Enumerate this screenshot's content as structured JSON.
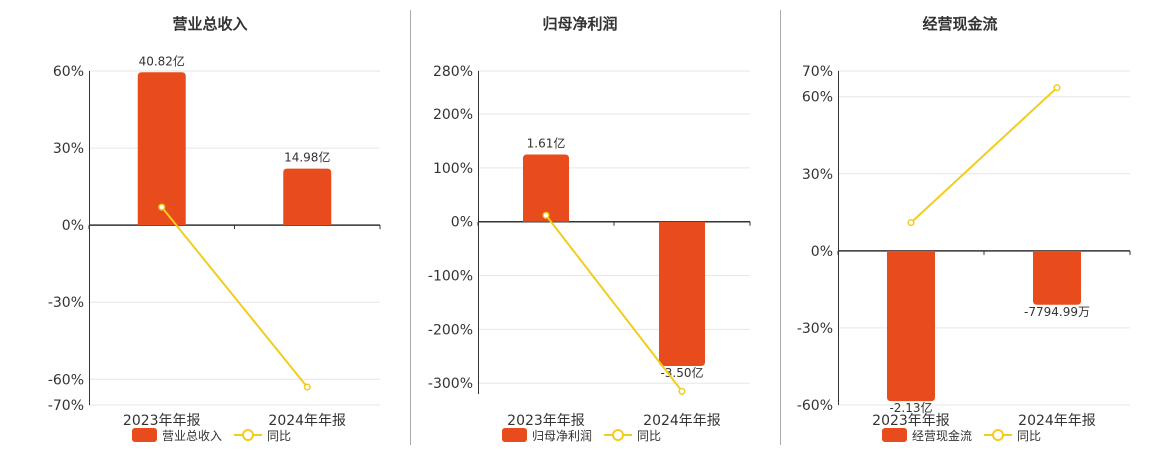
{
  "colors": {
    "bar": "#E84B1C",
    "line": "#F2CC1F",
    "grid": "#E6E6E6",
    "axis": "#333333",
    "divider": "#AAAAAA",
    "text": "#333333"
  },
  "chart_data": [
    {
      "type": "bar",
      "title": "营业总收入",
      "categories": [
        "2023年年报",
        "2024年年报"
      ],
      "ylim": [
        -70,
        60
      ],
      "yticks": [
        60,
        30,
        0,
        -30,
        -60,
        -70
      ],
      "ytick_labels": [
        "60%",
        "30%",
        "0%",
        "-30%",
        "-60%",
        "-70%"
      ],
      "series": [
        {
          "name": "营业总收入",
          "kind": "bar",
          "values": [
            59.5,
            22
          ],
          "labels": [
            "40.82亿",
            "14.98亿"
          ]
        },
        {
          "name": "同比",
          "kind": "line",
          "values": [
            7,
            -63
          ]
        }
      ],
      "legend": "bottom-center",
      "grid": true
    },
    {
      "type": "bar",
      "title": "归母净利润",
      "categories": [
        "2023年年报",
        "2024年年报"
      ],
      "ylim": [
        -320,
        280
      ],
      "yticks": [
        280,
        200,
        100,
        0,
        -100,
        -200,
        -300
      ],
      "ytick_labels": [
        "280%",
        "200%",
        "100%",
        "0%",
        "-100%",
        "-200%",
        "-300%"
      ],
      "series": [
        {
          "name": "归母净利润",
          "kind": "bar",
          "values": [
            125,
            -268
          ],
          "labels": [
            "1.61亿",
            "-3.50亿"
          ]
        },
        {
          "name": "同比",
          "kind": "line",
          "values": [
            12,
            -315
          ]
        }
      ],
      "legend": "bottom-center",
      "grid": true
    },
    {
      "type": "bar",
      "title": "经营现金流",
      "categories": [
        "2023年年报",
        "2024年年报"
      ],
      "ylim": [
        -60,
        70
      ],
      "yticks": [
        70,
        60,
        30,
        0,
        -30,
        -60
      ],
      "ytick_labels": [
        "70%",
        "60%",
        "30%",
        "0%",
        "-30%",
        "-60%"
      ],
      "series": [
        {
          "name": "经营现金流",
          "kind": "bar",
          "values": [
            -58.5,
            -21
          ],
          "labels": [
            "-2.13亿",
            "-7794.99万"
          ]
        },
        {
          "name": "同比",
          "kind": "line",
          "values": [
            11,
            63.5
          ]
        }
      ],
      "legend": "bottom-center",
      "grid": true
    }
  ]
}
